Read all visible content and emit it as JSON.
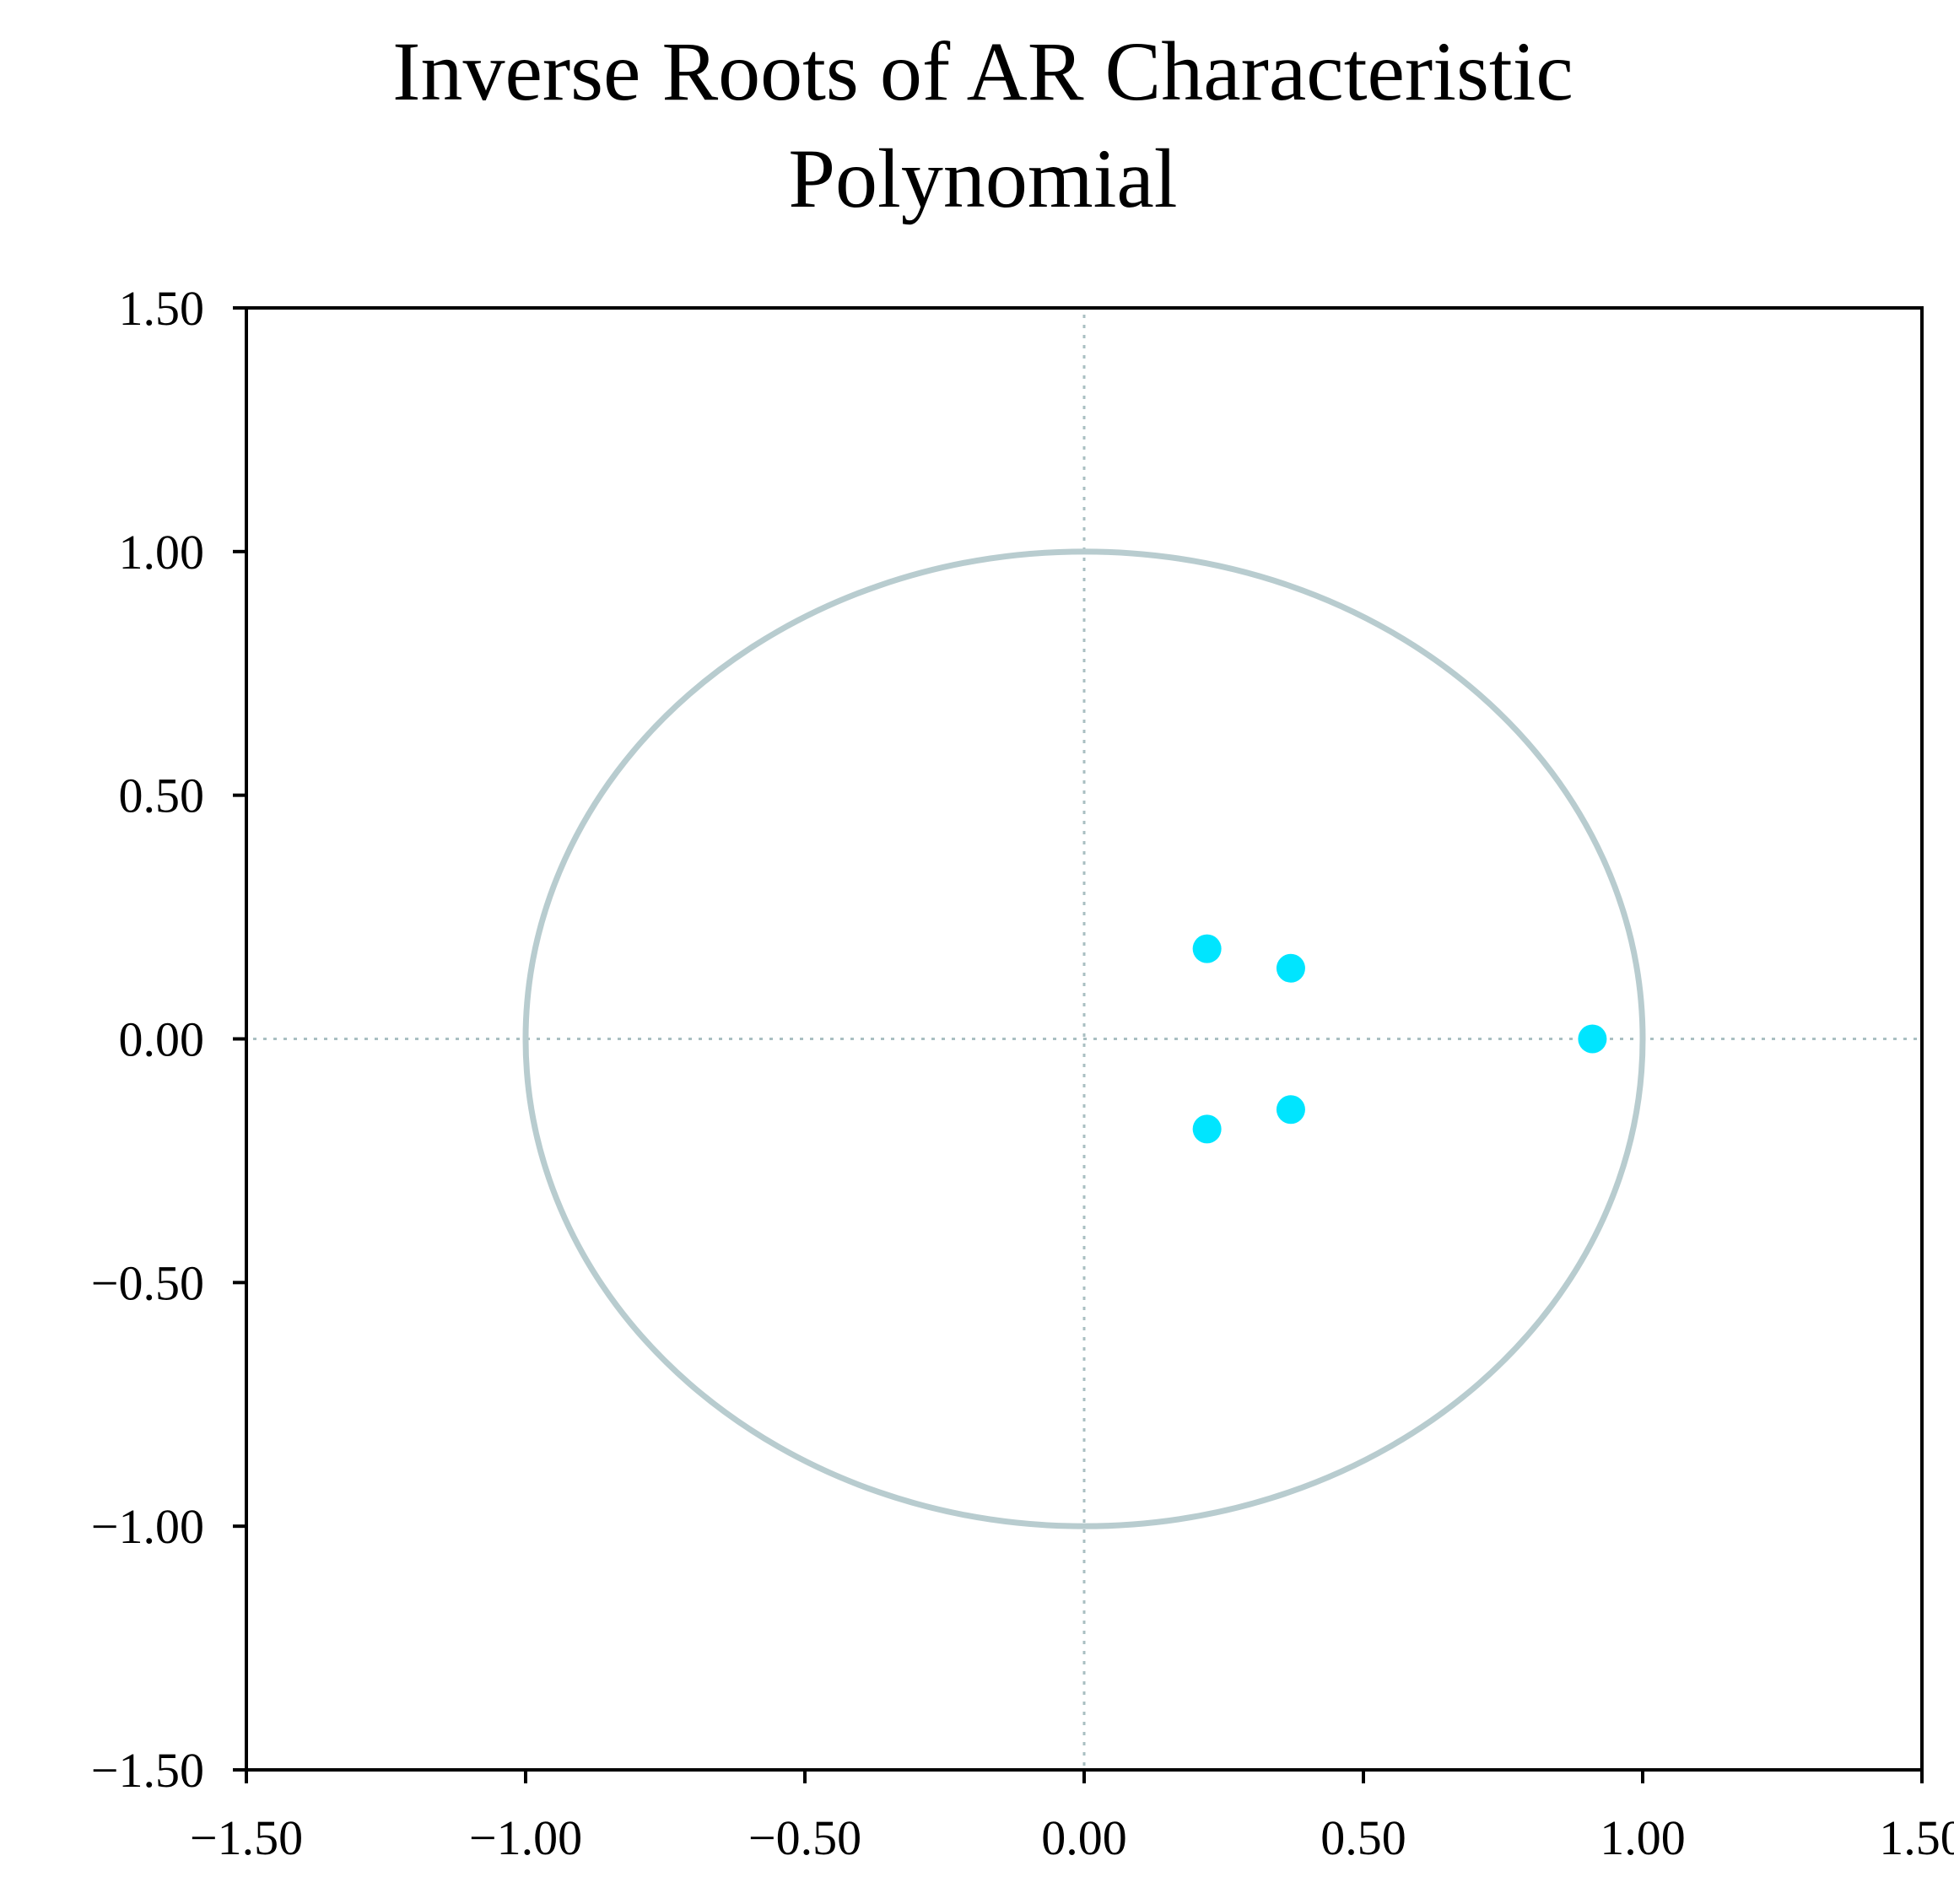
{
  "chart_data": {
    "type": "scatter",
    "title_lines": [
      "Inverse Roots of AR Characteristic",
      "Polynomial"
    ],
    "xlabel": "",
    "ylabel": "",
    "xlim": [
      -1.5,
      1.5
    ],
    "ylim": [
      -1.5,
      1.5
    ],
    "x_ticks": [
      -1.5,
      -1.0,
      -0.5,
      0.0,
      0.5,
      1.0,
      1.5
    ],
    "y_ticks": [
      -1.5,
      -1.0,
      -0.5,
      0.0,
      0.5,
      1.0,
      1.5
    ],
    "x_tick_labels": [
      "−1.50",
      "−1.00",
      "−0.50",
      "0.00",
      "0.50",
      "1.00",
      "1.50"
    ],
    "y_tick_labels": [
      "−1.50",
      "−1.00",
      "−0.50",
      "0.00",
      "0.50",
      "1.00",
      "1.50"
    ],
    "grid": false,
    "reference_lines": {
      "x": 0,
      "y": 0,
      "style": "dotted"
    },
    "unit_circle": {
      "center": [
        0,
        0
      ],
      "radius": 1
    },
    "points": [
      {
        "x": 0.22,
        "y": 0.185
      },
      {
        "x": 0.37,
        "y": 0.145
      },
      {
        "x": 0.91,
        "y": 0.0
      },
      {
        "x": 0.37,
        "y": -0.145
      },
      {
        "x": 0.22,
        "y": -0.185
      }
    ],
    "colors": {
      "points": "#00e5ff",
      "circle": "#b8cccf",
      "reference_lines": "#a9bfc2",
      "axes": "#000000"
    }
  }
}
